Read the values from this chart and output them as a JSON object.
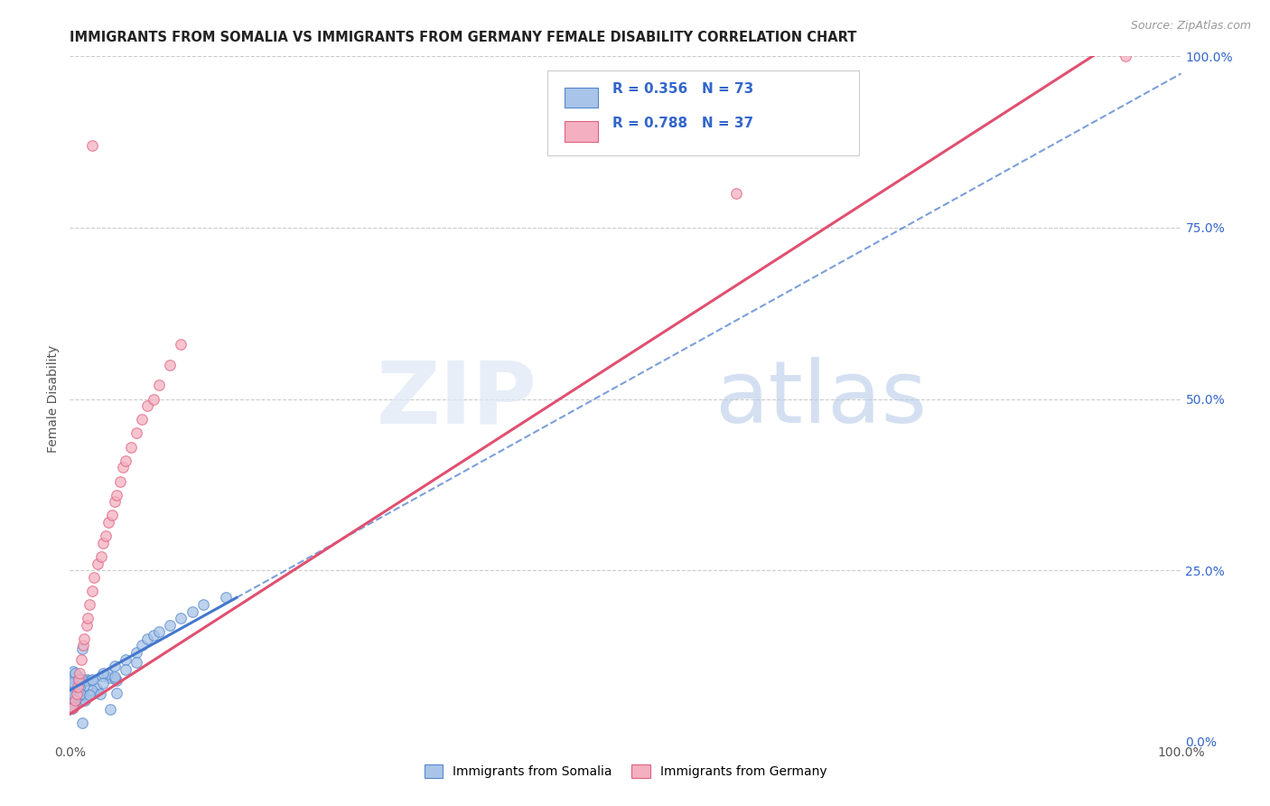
{
  "title": "IMMIGRANTS FROM SOMALIA VS IMMIGRANTS FROM GERMANY FEMALE DISABILITY CORRELATION CHART",
  "source": "Source: ZipAtlas.com",
  "ylabel": "Female Disability",
  "r_somalia": 0.356,
  "n_somalia": 73,
  "r_germany": 0.788,
  "n_germany": 37,
  "color_somalia_fill": "#a8c4e8",
  "color_somalia_edge": "#5588cc",
  "color_germany_fill": "#f4b0c0",
  "color_germany_edge": "#e06080",
  "color_somalia_line": "#4477cc",
  "color_germany_line": "#e05070",
  "color_text_blue": "#3366cc",
  "right_yticks": [
    0.0,
    0.25,
    0.5,
    0.75,
    1.0
  ],
  "right_yticklabels": [
    "0.0%",
    "25.0%",
    "50.0%",
    "75.0%",
    "100.0%"
  ],
  "xlim": [
    0.0,
    1.0
  ],
  "ylim": [
    0.0,
    1.0
  ]
}
